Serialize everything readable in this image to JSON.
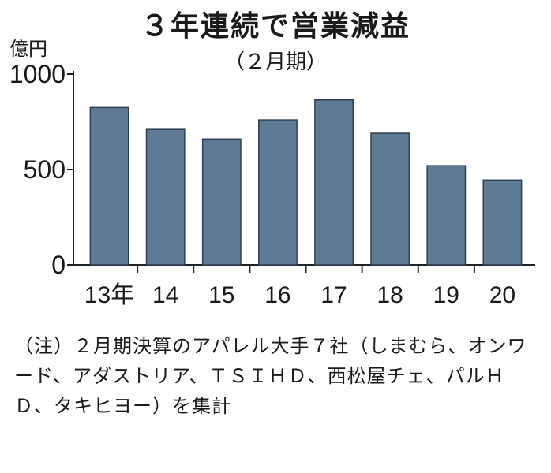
{
  "chart_data": {
    "type": "bar",
    "title": "３年連続で営業減益",
    "subtitle": "（２月期）",
    "unit": "億円",
    "categories": [
      "13年",
      "14",
      "15",
      "16",
      "17",
      "18",
      "19",
      "20"
    ],
    "values": [
      825,
      710,
      660,
      760,
      865,
      690,
      520,
      445
    ],
    "yticks": [
      0,
      500,
      1000
    ],
    "ylim": [
      0,
      1000
    ],
    "grid": false,
    "bar_color": "#5f7a95"
  },
  "note": "（注）２月期決算のアパレル大手７社（しまむら、オンワード、アダストリア、ＴＳＩＨＤ、西松屋チェ、パルＨＤ、タキヒヨー）を集計"
}
